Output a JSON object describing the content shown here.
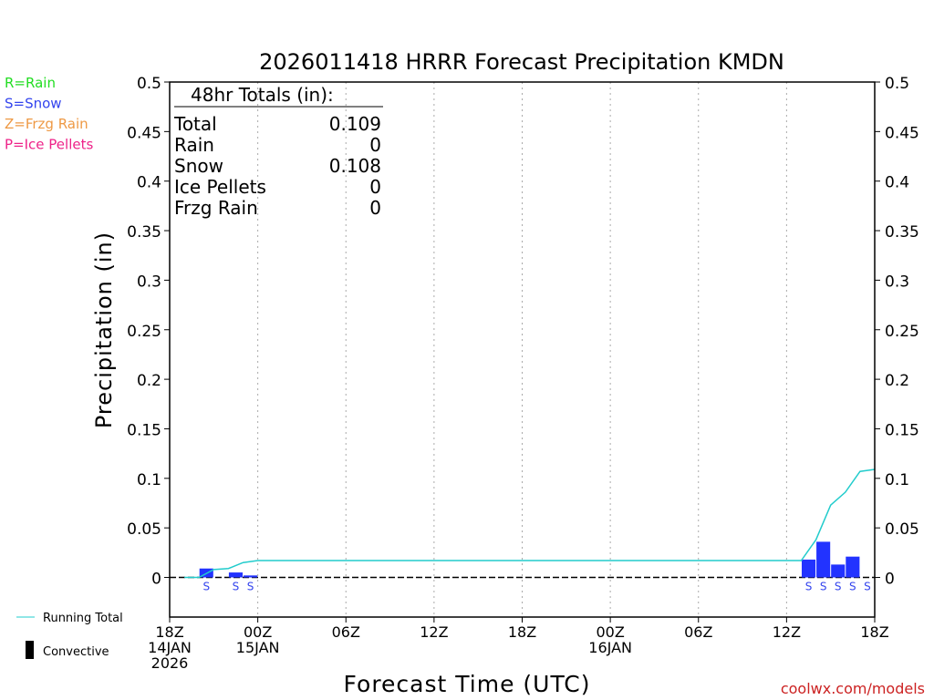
{
  "chart_data": {
    "type": "bar",
    "title": "2026011418 HRRR Forecast Precipitation KMDN",
    "ylabel": "Precipitation (in)",
    "xlabel": "Forecast Time (UTC)",
    "ylim": [
      -0.04,
      0.5
    ],
    "xlim_hours": [
      0,
      48
    ],
    "y_ticks": [
      0,
      0.05,
      0.1,
      0.15,
      0.2,
      0.25,
      0.3,
      0.35,
      0.4,
      0.45,
      0.5
    ],
    "y_tick_labels": [
      "0",
      "0.05",
      "0.1",
      "0.15",
      "0.2",
      "0.25",
      "0.3",
      "0.35",
      "0.4",
      "0.45",
      "0.5"
    ],
    "x_ticks": [
      {
        "hour": 0,
        "lines": [
          "18Z",
          "14JAN",
          "2026"
        ]
      },
      {
        "hour": 6,
        "lines": [
          "00Z",
          "15JAN"
        ]
      },
      {
        "hour": 12,
        "lines": [
          "06Z"
        ]
      },
      {
        "hour": 18,
        "lines": [
          "12Z"
        ]
      },
      {
        "hour": 24,
        "lines": [
          "18Z"
        ]
      },
      {
        "hour": 30,
        "lines": [
          "00Z",
          "16JAN"
        ]
      },
      {
        "hour": 36,
        "lines": [
          "06Z"
        ]
      },
      {
        "hour": 42,
        "lines": [
          "12Z"
        ]
      },
      {
        "hour": 48,
        "lines": [
          "18Z"
        ]
      }
    ],
    "grid": {
      "vertical": "dotted",
      "horizontal": false
    },
    "bars": [
      {
        "hour": 3,
        "value": 0.009,
        "type": "S"
      },
      {
        "hour": 5,
        "value": 0.005,
        "type": "S"
      },
      {
        "hour": 6,
        "value": 0.002,
        "type": "S"
      },
      {
        "hour": 44,
        "value": 0.018,
        "type": "S"
      },
      {
        "hour": 45,
        "value": 0.036,
        "type": "S"
      },
      {
        "hour": 46,
        "value": 0.013,
        "type": "S"
      },
      {
        "hour": 47,
        "value": 0.021,
        "type": "S"
      },
      {
        "hour": 48,
        "value": 0.0,
        "type": "S"
      }
    ],
    "running_total": {
      "name": "Running Total",
      "x": [
        1,
        2,
        3,
        4,
        5,
        6,
        7,
        8,
        43,
        44,
        45,
        46,
        47,
        48
      ],
      "y": [
        0,
        0,
        0.008,
        0.009,
        0.015,
        0.017,
        0.017,
        0.017,
        0.017,
        0.038,
        0.073,
        0.086,
        0.107,
        0.109
      ]
    },
    "totals_box": {
      "heading": "48hr Totals (in):",
      "rows": [
        {
          "label": "Total",
          "value": "0.109"
        },
        {
          "label": "Rain",
          "value": "0"
        },
        {
          "label": "Snow",
          "value": "0.108"
        },
        {
          "label": "Ice Pellets",
          "value": "0"
        },
        {
          "label": "Frzg Rain",
          "value": "0"
        }
      ]
    },
    "type_legend": [
      {
        "text": "R=Rain",
        "color": "#22dd22"
      },
      {
        "text": "S=Snow",
        "color": "#3344ee"
      },
      {
        "text": "Z=Frzg Rain",
        "color": "#ee9944"
      },
      {
        "text": "P=Ice Pellets",
        "color": "#ee2288"
      }
    ],
    "line_legend": {
      "running_total": "Running Total",
      "convective": "Convective"
    },
    "credit": "coolwx.com/models",
    "colors": {
      "snow_bar": "#2233ff",
      "snow_letter": "#3344ee",
      "running_total": "#22cccc",
      "credit": "#cc2222"
    }
  }
}
